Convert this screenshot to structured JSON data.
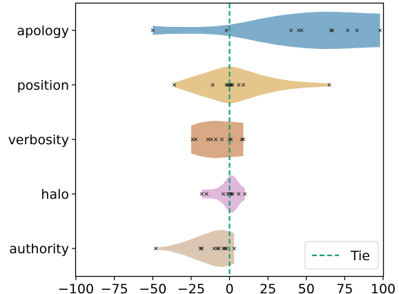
{
  "chart_data": {
    "type": "violin",
    "orientation": "horizontal",
    "categories": [
      "apology",
      "position",
      "verbosity",
      "halo",
      "authority"
    ],
    "xlim": [
      -100,
      100
    ],
    "xticks": [
      -100,
      -75,
      -50,
      -25,
      0,
      25,
      50,
      75,
      100
    ],
    "xtick_labels": [
      "−100",
      "−75",
      "−50",
      "−25",
      "0",
      "25",
      "50",
      "75",
      "100"
    ],
    "grid": false,
    "reference_line": {
      "x": 0,
      "label": "Tie",
      "color": "#1a9e77",
      "style": "dashed"
    },
    "legend": {
      "placement": "bottom-right",
      "entries": [
        "Tie"
      ]
    },
    "series": [
      {
        "category": "apology",
        "color": "#7eadcb",
        "points": [
          -50,
          -2,
          40,
          45,
          47,
          66,
          67,
          77,
          83,
          98
        ],
        "density": [
          [
            -50,
            0.24
          ],
          [
            -40,
            0.19
          ],
          [
            -30,
            0.18
          ],
          [
            -20,
            0.18
          ],
          [
            -10,
            0.22
          ],
          [
            0,
            0.3
          ],
          [
            10,
            0.45
          ],
          [
            20,
            0.62
          ],
          [
            30,
            0.77
          ],
          [
            40,
            0.88
          ],
          [
            50,
            0.96
          ],
          [
            60,
            1.0
          ],
          [
            70,
            0.99
          ],
          [
            80,
            0.96
          ],
          [
            90,
            0.92
          ],
          [
            98,
            0.9
          ]
        ]
      },
      {
        "category": "position",
        "color": "#e4c58c",
        "points": [
          -36,
          -11,
          -2,
          -1,
          0,
          0.5,
          1,
          2,
          6,
          9,
          65
        ],
        "density": [
          [
            -36,
            0.12
          ],
          [
            -30,
            0.28
          ],
          [
            -20,
            0.55
          ],
          [
            -10,
            0.8
          ],
          [
            -5,
            0.93
          ],
          [
            0,
            1.0
          ],
          [
            5,
            0.93
          ],
          [
            10,
            0.8
          ],
          [
            20,
            0.55
          ],
          [
            30,
            0.35
          ],
          [
            40,
            0.22
          ],
          [
            50,
            0.15
          ],
          [
            60,
            0.1
          ],
          [
            65,
            0.07
          ]
        ]
      },
      {
        "category": "verbosity",
        "color": "#d9a884",
        "points": [
          -24,
          -22,
          -14,
          -12,
          -9,
          -5,
          0,
          1,
          8,
          9
        ],
        "density": [
          [
            -25,
            0.75
          ],
          [
            -20,
            0.88
          ],
          [
            -15,
            0.96
          ],
          [
            -10,
            1.0
          ],
          [
            -5,
            0.98
          ],
          [
            0,
            0.95
          ],
          [
            5,
            0.92
          ],
          [
            9,
            0.9
          ]
        ]
      },
      {
        "category": "halo",
        "color": "#dfb8da",
        "points": [
          -18,
          -15,
          -4,
          -1,
          0,
          0.5,
          1,
          2,
          6,
          10
        ],
        "density": [
          [
            -18,
            0.22
          ],
          [
            -15,
            0.24
          ],
          [
            -12,
            0.24
          ],
          [
            -8,
            0.3
          ],
          [
            -4,
            0.55
          ],
          [
            0,
            0.98
          ],
          [
            2,
            1.0
          ],
          [
            4,
            0.85
          ],
          [
            7,
            0.5
          ],
          [
            10,
            0.3
          ]
        ]
      },
      {
        "category": "authority",
        "color": "#dbc7b1",
        "points": [
          -48,
          -19,
          -18,
          -10,
          -8,
          -7,
          -4,
          -3,
          -2,
          3
        ],
        "density": [
          [
            -49,
            0.05
          ],
          [
            -40,
            0.12
          ],
          [
            -30,
            0.35
          ],
          [
            -20,
            0.65
          ],
          [
            -10,
            0.95
          ],
          [
            -5,
            1.0
          ],
          [
            0,
            0.92
          ],
          [
            3,
            0.82
          ]
        ]
      }
    ]
  }
}
